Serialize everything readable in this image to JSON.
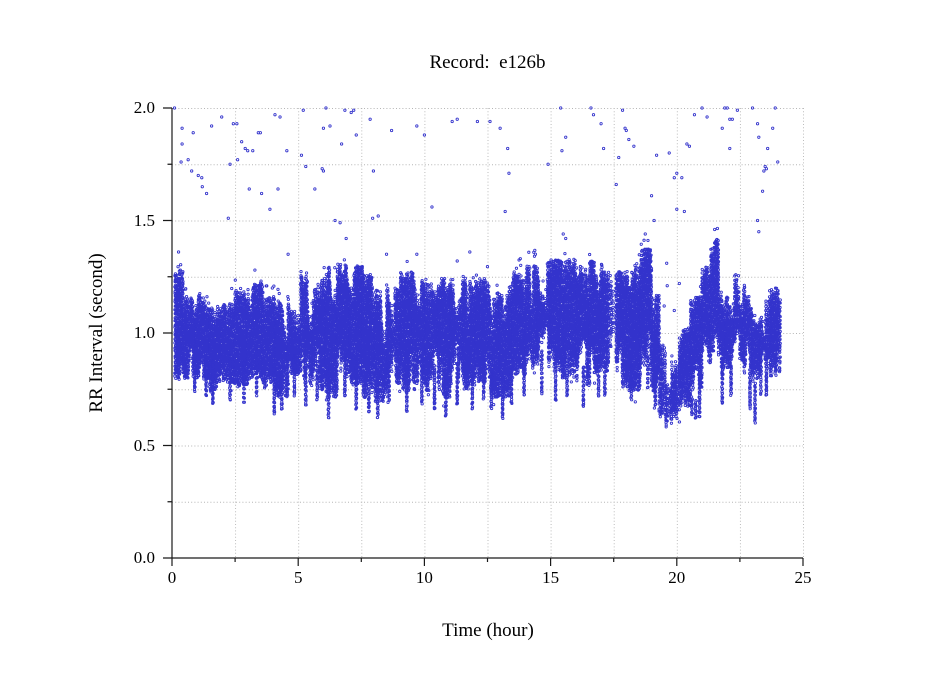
{
  "chart_data": {
    "type": "scatter",
    "title": "Record:  e126b",
    "xlabel": "Time (hour)",
    "ylabel": "RR Interval (second)",
    "xlim": [
      0,
      25
    ],
    "ylim": [
      0.0,
      2.0
    ],
    "xticks": {
      "major": [
        {
          "v": 0,
          "label": "0"
        },
        {
          "v": 5,
          "label": "5"
        },
        {
          "v": 10,
          "label": "10"
        },
        {
          "v": 15,
          "label": "15"
        },
        {
          "v": 20,
          "label": "20"
        },
        {
          "v": 25,
          "label": "25"
        }
      ],
      "minor_step": 2.5
    },
    "yticks": {
      "major": [
        {
          "v": 0.0,
          "label": "0.0"
        },
        {
          "v": 0.5,
          "label": "0.5"
        },
        {
          "v": 1.0,
          "label": "1.0"
        },
        {
          "v": 1.5,
          "label": "1.5"
        },
        {
          "v": 2.0,
          "label": "2.0"
        }
      ],
      "minor_step": 0.25
    },
    "grid": {
      "style": "dotted",
      "color": "#b5b5b5",
      "x_step": 2.5,
      "y_step": 0.25
    },
    "axis_color": "#1a1a1a",
    "marker": {
      "shape": "open-circle",
      "color": "#3333cc",
      "radius_px": 1.15
    },
    "series": [
      {
        "name": "RR intervals",
        "representation": "density-band",
        "band_segments": [
          [
            0.12,
            0.45,
            0.8,
            1.28
          ],
          [
            0.45,
            0.95,
            0.8,
            1.16
          ],
          [
            0.95,
            1.5,
            0.8,
            1.18
          ],
          [
            1.5,
            2.0,
            0.74,
            1.12
          ],
          [
            2.0,
            2.5,
            0.78,
            1.14
          ],
          [
            2.5,
            3.0,
            0.76,
            1.19
          ],
          [
            3.0,
            3.6,
            0.8,
            1.22
          ],
          [
            3.6,
            4.1,
            0.76,
            1.16
          ],
          [
            4.1,
            4.6,
            0.72,
            1.14
          ],
          [
            4.6,
            5.1,
            0.82,
            1.26
          ],
          [
            5.1,
            5.6,
            0.78,
            1.28
          ],
          [
            5.6,
            6.1,
            0.75,
            1.24
          ],
          [
            6.1,
            6.55,
            0.72,
            1.3
          ],
          [
            6.55,
            7.05,
            0.82,
            1.31
          ],
          [
            7.05,
            7.55,
            0.78,
            1.3
          ],
          [
            7.55,
            8.05,
            0.72,
            1.26
          ],
          [
            8.05,
            8.55,
            0.7,
            1.22
          ],
          [
            8.55,
            9.05,
            0.78,
            1.24
          ],
          [
            9.05,
            9.55,
            0.75,
            1.27
          ],
          [
            9.55,
            10.05,
            0.78,
            1.24
          ],
          [
            10.05,
            10.55,
            0.75,
            1.22
          ],
          [
            10.55,
            11.05,
            0.72,
            1.24
          ],
          [
            11.05,
            11.55,
            0.78,
            1.27
          ],
          [
            11.55,
            12.05,
            0.75,
            1.24
          ],
          [
            12.05,
            12.55,
            0.78,
            1.24
          ],
          [
            12.55,
            13.0,
            0.72,
            1.18
          ],
          [
            13.0,
            13.5,
            0.72,
            1.2
          ],
          [
            13.5,
            14.0,
            0.82,
            1.26
          ],
          [
            14.0,
            14.5,
            0.85,
            1.3
          ],
          [
            14.5,
            15.0,
            0.85,
            1.32
          ],
          [
            15.0,
            15.55,
            0.8,
            1.33
          ],
          [
            15.55,
            16.05,
            0.8,
            1.33
          ],
          [
            16.05,
            16.55,
            0.76,
            1.3
          ],
          [
            16.55,
            17.05,
            0.82,
            1.33
          ],
          [
            17.05,
            17.3,
            0.78,
            1.28
          ],
          [
            17.3,
            17.6,
            0.85,
            1.25,
            0.25
          ],
          [
            17.6,
            18.05,
            0.76,
            1.28
          ],
          [
            18.05,
            18.55,
            0.75,
            1.3
          ],
          [
            18.55,
            19.0,
            0.78,
            1.38
          ],
          [
            19.0,
            19.3,
            0.72,
            1.18
          ],
          [
            19.3,
            19.55,
            0.58,
            0.95,
            0.8
          ],
          [
            19.55,
            19.8,
            0.55,
            0.78,
            0.7
          ],
          [
            19.8,
            20.1,
            0.62,
            0.92,
            0.8
          ],
          [
            20.1,
            20.55,
            0.68,
            1.02
          ],
          [
            20.55,
            21.0,
            0.76,
            1.16
          ],
          [
            21.0,
            21.35,
            0.85,
            1.3
          ],
          [
            21.35,
            21.65,
            0.92,
            1.42
          ],
          [
            21.65,
            21.95,
            0.82,
            1.18
          ],
          [
            21.95,
            22.3,
            0.85,
            1.16
          ],
          [
            22.3,
            22.65,
            0.88,
            1.3
          ],
          [
            22.65,
            23.0,
            0.82,
            1.24
          ],
          [
            23.0,
            23.35,
            0.72,
            1.06
          ],
          [
            23.35,
            23.75,
            0.78,
            1.16
          ],
          [
            23.75,
            24.1,
            0.8,
            1.2
          ]
        ],
        "down_spikes": [
          [
            0.9,
            0.74,
            0.95
          ],
          [
            1.35,
            0.72,
            0.9
          ],
          [
            1.62,
            0.68,
            0.88
          ],
          [
            2.3,
            0.7,
            0.9
          ],
          [
            2.85,
            0.68,
            0.88
          ],
          [
            3.35,
            0.72,
            0.92
          ],
          [
            4.05,
            0.64,
            0.86
          ],
          [
            4.35,
            0.66,
            0.84
          ],
          [
            4.85,
            0.72,
            0.9
          ],
          [
            5.3,
            0.68,
            0.88
          ],
          [
            5.75,
            0.7,
            0.88
          ],
          [
            6.2,
            0.62,
            0.84
          ],
          [
            6.85,
            0.72,
            0.92
          ],
          [
            7.3,
            0.66,
            0.88
          ],
          [
            7.8,
            0.64,
            0.84
          ],
          [
            8.15,
            0.62,
            0.82
          ],
          [
            8.6,
            0.7,
            0.88
          ],
          [
            9.3,
            0.65,
            0.85
          ],
          [
            9.9,
            0.68,
            0.88
          ],
          [
            10.4,
            0.66,
            0.86
          ],
          [
            10.85,
            0.63,
            0.82
          ],
          [
            11.3,
            0.68,
            0.88
          ],
          [
            11.9,
            0.66,
            0.84
          ],
          [
            12.35,
            0.7,
            0.88
          ],
          [
            12.65,
            0.66,
            0.82
          ],
          [
            13.1,
            0.62,
            0.82
          ],
          [
            13.45,
            0.68,
            0.84
          ],
          [
            13.95,
            0.72,
            0.9
          ],
          [
            14.65,
            0.73,
            0.92
          ],
          [
            15.2,
            0.7,
            0.9
          ],
          [
            15.65,
            0.72,
            0.9
          ],
          [
            16.3,
            0.67,
            0.86
          ],
          [
            16.9,
            0.72,
            0.9
          ],
          [
            17.15,
            0.72,
            0.88
          ],
          [
            18.2,
            0.7,
            0.86
          ],
          [
            18.85,
            0.74,
            0.9
          ],
          [
            19.15,
            0.68,
            0.82
          ],
          [
            20.9,
            0.62,
            0.8
          ],
          [
            21.8,
            0.68,
            0.84
          ],
          [
            22.15,
            0.72,
            0.86
          ],
          [
            22.9,
            0.66,
            0.84
          ],
          [
            23.1,
            0.6,
            0.78
          ],
          [
            23.55,
            0.72,
            0.84
          ],
          [
            20.6,
            0.63,
            0.72
          ],
          [
            20.75,
            0.62,
            0.7
          ]
        ],
        "outliers": [
          [
            0.1,
            2.0
          ],
          [
            0.4,
            1.91
          ],
          [
            0.84,
            1.89
          ],
          [
            0.4,
            1.84
          ],
          [
            1.97,
            1.96
          ],
          [
            1.57,
            1.92
          ],
          [
            2.43,
            1.93
          ],
          [
            2.57,
            1.93
          ],
          [
            2.76,
            1.85
          ],
          [
            3.42,
            1.89
          ],
          [
            3.5,
            1.89
          ],
          [
            2.9,
            1.82
          ],
          [
            3.0,
            1.81
          ],
          [
            3.2,
            1.81
          ],
          [
            4.55,
            1.81
          ],
          [
            4.08,
            1.97
          ],
          [
            4.28,
            1.96
          ],
          [
            5.2,
            1.99
          ],
          [
            6.1,
            2.0
          ],
          [
            6.85,
            1.99
          ],
          [
            7.1,
            1.98
          ],
          [
            7.2,
            1.99
          ],
          [
            7.85,
            1.95
          ],
          [
            6.0,
            1.91
          ],
          [
            6.26,
            1.92
          ],
          [
            6.72,
            1.84
          ],
          [
            7.3,
            1.88
          ],
          [
            8.7,
            1.9
          ],
          [
            9.7,
            1.92
          ],
          [
            10.0,
            1.88
          ],
          [
            11.1,
            1.94
          ],
          [
            11.3,
            1.95
          ],
          [
            12.1,
            1.94
          ],
          [
            12.6,
            1.94
          ],
          [
            0.36,
            1.76
          ],
          [
            0.64,
            1.77
          ],
          [
            0.78,
            1.72
          ],
          [
            1.04,
            1.7
          ],
          [
            1.18,
            1.69
          ],
          [
            1.2,
            1.65
          ],
          [
            1.37,
            1.62
          ],
          [
            2.3,
            1.75
          ],
          [
            2.6,
            1.77
          ],
          [
            3.06,
            1.64
          ],
          [
            3.55,
            1.62
          ],
          [
            4.2,
            1.64
          ],
          [
            3.88,
            1.55
          ],
          [
            5.13,
            1.79
          ],
          [
            5.3,
            1.74
          ],
          [
            5.66,
            1.64
          ],
          [
            6.0,
            1.72
          ],
          [
            5.95,
            1.73
          ],
          [
            7.98,
            1.72
          ],
          [
            8.17,
            1.52
          ],
          [
            7.95,
            1.51
          ],
          [
            6.46,
            1.5
          ],
          [
            2.23,
            1.51
          ],
          [
            0.26,
            1.36
          ],
          [
            4.6,
            1.35
          ],
          [
            8.5,
            1.35
          ],
          [
            9.7,
            1.35
          ],
          [
            11.8,
            1.36
          ],
          [
            11.3,
            1.32
          ],
          [
            6.66,
            1.49
          ],
          [
            6.9,
            1.42
          ],
          [
            6.45,
            1.29
          ],
          [
            10.3,
            1.56
          ],
          [
            13.0,
            1.91
          ],
          [
            13.3,
            1.82
          ],
          [
            13.35,
            1.71
          ],
          [
            13.2,
            1.54
          ],
          [
            14.9,
            1.75
          ],
          [
            15.4,
            2.0
          ],
          [
            15.6,
            1.87
          ],
          [
            15.45,
            1.81
          ],
          [
            16.6,
            2.0
          ],
          [
            16.7,
            1.97
          ],
          [
            17.0,
            1.93
          ],
          [
            17.1,
            1.82
          ],
          [
            17.85,
            1.99
          ],
          [
            17.95,
            1.91
          ],
          [
            18.0,
            1.9
          ],
          [
            18.1,
            1.86
          ],
          [
            18.3,
            1.83
          ],
          [
            17.7,
            1.78
          ],
          [
            19.2,
            1.79
          ],
          [
            17.6,
            1.66
          ],
          [
            19.0,
            1.61
          ],
          [
            20.0,
            1.71
          ],
          [
            19.9,
            1.69
          ],
          [
            20.2,
            1.69
          ],
          [
            19.7,
            1.8
          ],
          [
            20.4,
            1.84
          ],
          [
            20.5,
            1.83
          ],
          [
            20.7,
            1.97
          ],
          [
            21.0,
            2.0
          ],
          [
            21.9,
            2.0
          ],
          [
            22.4,
            1.99
          ],
          [
            22.0,
            2.0
          ],
          [
            22.2,
            1.95
          ],
          [
            22.1,
            1.95
          ],
          [
            21.8,
            1.91
          ],
          [
            21.2,
            1.96
          ],
          [
            23.0,
            2.0
          ],
          [
            23.9,
            2.0
          ],
          [
            23.2,
            1.93
          ],
          [
            23.8,
            1.91
          ],
          [
            23.6,
            1.82
          ],
          [
            23.25,
            1.87
          ],
          [
            22.1,
            1.82
          ],
          [
            24.0,
            1.76
          ],
          [
            23.5,
            1.74
          ],
          [
            23.55,
            1.73
          ],
          [
            23.45,
            1.72
          ],
          [
            23.4,
            1.63
          ],
          [
            20.0,
            1.55
          ],
          [
            20.3,
            1.54
          ],
          [
            19.1,
            1.5
          ],
          [
            23.2,
            1.5
          ],
          [
            23.25,
            1.45
          ],
          [
            15.5,
            1.44
          ],
          [
            15.6,
            1.42
          ],
          [
            19.6,
            1.31
          ],
          [
            14.4,
            1.35
          ],
          [
            13.8,
            1.33
          ],
          [
            19.5,
            1.12
          ],
          [
            19.62,
            1.21
          ],
          [
            19.9,
            1.1
          ],
          [
            20.1,
            1.22
          ],
          [
            18.75,
            1.44
          ],
          [
            21.5,
            1.46
          ]
        ]
      }
    ]
  }
}
